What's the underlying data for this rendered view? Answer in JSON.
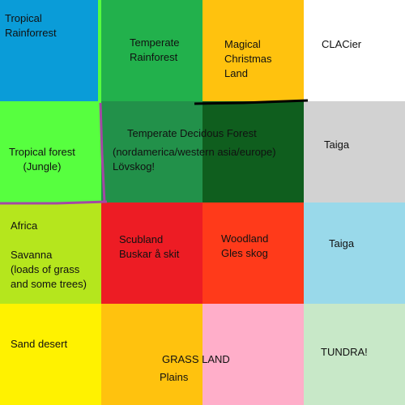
{
  "cells": {
    "tropical_rainforest": {
      "label": "Tropical\nRainforrest",
      "color": "#0a9cd8"
    },
    "temperate_rainforest": {
      "label": "Temperate\nRainforest",
      "color": "#22b14c"
    },
    "magical_christmas_land": {
      "label": "Magical\nChristmas\nLand",
      "color": "#ffc20e"
    },
    "glacier": {
      "label": "CLACier",
      "color": "#ffffff"
    },
    "tropical_forest": {
      "label": "Tropical forest\n(Jungle)",
      "color": "#57ff3f"
    },
    "temperate_decidous_forest": {
      "title": "Temperate Decidous Forest",
      "regions": "(nordamerica/western asia/europe)",
      "swedish": "Lövskog!",
      "color_left": "#22914a",
      "color_right": "#0f5e1e"
    },
    "taiga_top": {
      "label": "Taiga",
      "color": "#d2d2d2"
    },
    "savanna": {
      "label": "Africa\n\nSavanna\n(loads of grass\nand some trees)",
      "color": "#b5e61d"
    },
    "scubland": {
      "label": "Scubland\nBuskar å skit",
      "color": "#ed1c24"
    },
    "woodland": {
      "label": "Woodland\nGles skog",
      "color": "#ff3a1a"
    },
    "taiga_bottom": {
      "label": "Taiga",
      "color": "#99d9ea"
    },
    "sand_desert": {
      "label": "Sand desert",
      "color": "#fff200"
    },
    "grassland": {
      "label": "GRASS LAND",
      "sublabel": "Plains",
      "color_left": "#ffc20e",
      "color_right": "#ffaec9"
    },
    "tundra": {
      "label": "TUNDRA!",
      "color": "#c8e8c8"
    }
  },
  "marks": {
    "black_line_color": "#000000",
    "purple_line_color": "#a349a4",
    "green_line_color": "#57ff3f"
  }
}
